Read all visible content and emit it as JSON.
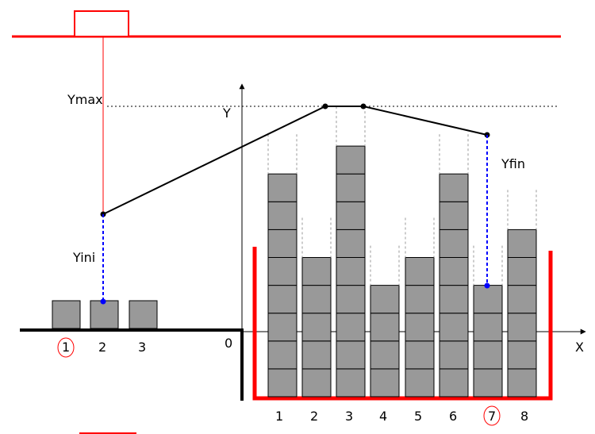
{
  "labels": {
    "y_axis": "Y",
    "x_axis": "X",
    "origin": "0",
    "ymax": "Ymax",
    "yini": "Yini",
    "yfin": "Yfin"
  },
  "source_slots": [
    "1",
    "2",
    "3"
  ],
  "target_slots": [
    "1",
    "2",
    "3",
    "4",
    "5",
    "6",
    "7",
    "8"
  ],
  "source_circled_slot": "1",
  "target_circled_slot": "7",
  "source_stack_counts": [
    1,
    1,
    1
  ],
  "target_stack_counts": [
    8,
    5,
    9,
    4,
    5,
    8,
    4,
    6
  ],
  "colors": {
    "rail": "#ff0000",
    "container": "#ff0000",
    "block_fill": "#999999",
    "block_stroke": "#000000",
    "path": "#000000",
    "drop_line": "#0000ff",
    "marker_point": "#0000ff"
  }
}
